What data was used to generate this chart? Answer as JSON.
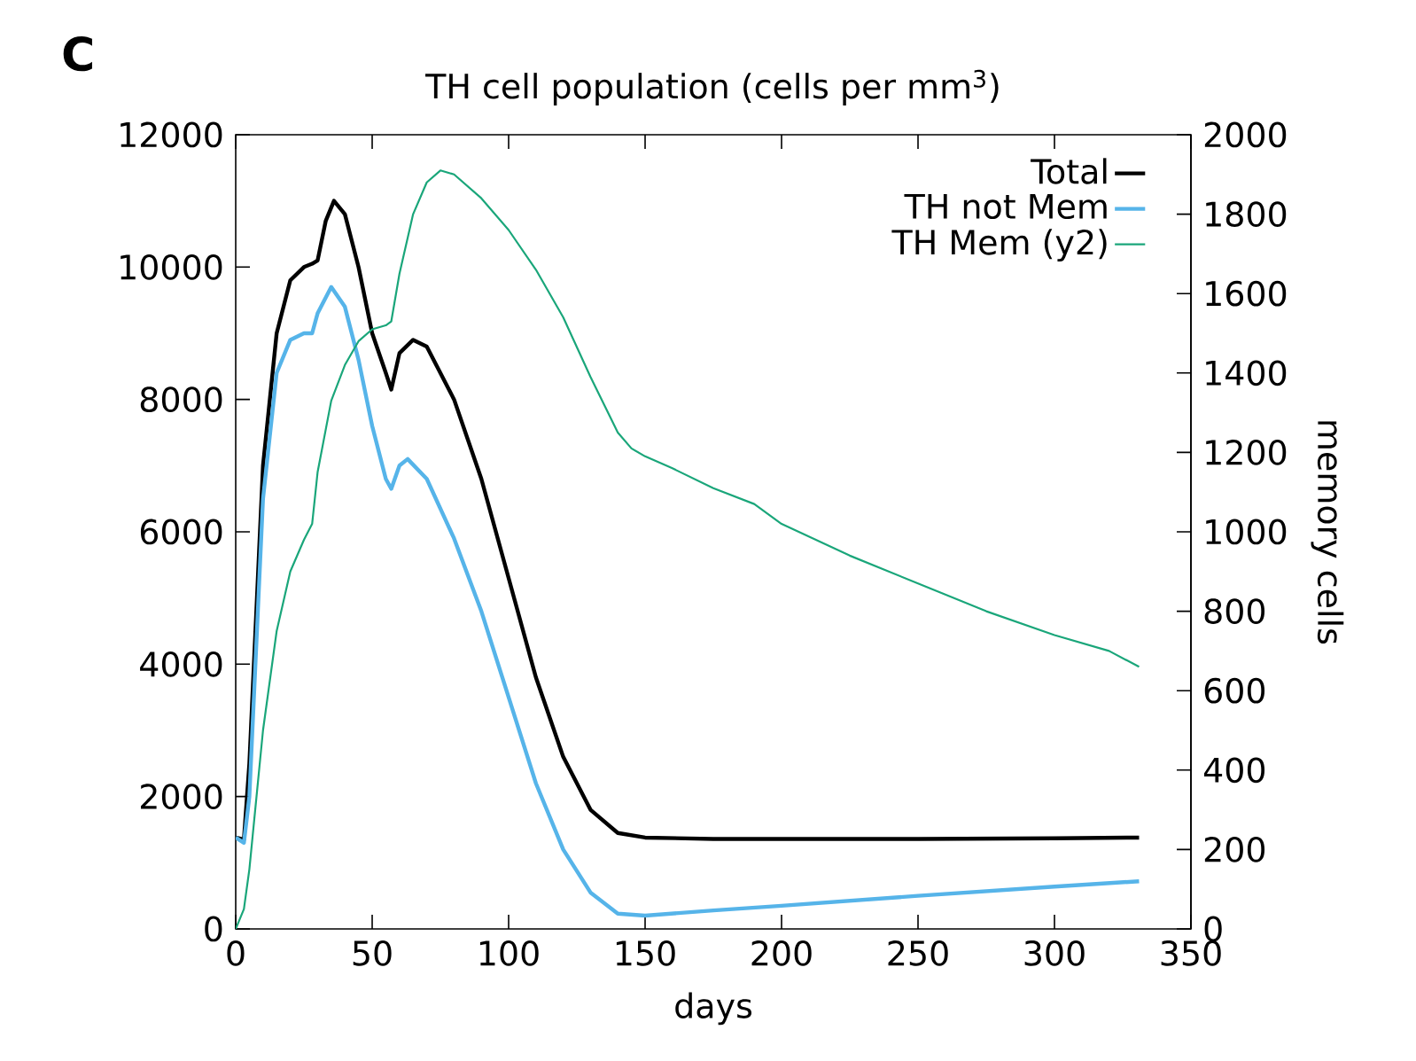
{
  "chart_data": {
    "type": "line",
    "title": "TH cell population (cells per mm$^{3}$)",
    "xlabel": "days",
    "y2label": "memory cells",
    "annotations": [
      "C"
    ],
    "xlim": [
      0,
      350
    ],
    "xticks": [
      0,
      50,
      100,
      150,
      200,
      250,
      300,
      350
    ],
    "ylim": [
      0,
      12000
    ],
    "yticks": [
      0,
      2000,
      4000,
      6000,
      8000,
      10000,
      12000
    ],
    "y2lim": [
      0,
      2000
    ],
    "y2ticks": [
      0,
      200,
      400,
      600,
      800,
      1000,
      1200,
      1400,
      1600,
      1800,
      2000
    ],
    "grid": false,
    "legend": "top right",
    "line_style": "solid",
    "marker": "none",
    "series": [
      {
        "name": "Total",
        "color": "#000000",
        "x": [
          0,
          3,
          5,
          10,
          15,
          20,
          25,
          28,
          30,
          33,
          36,
          40,
          45,
          50,
          55,
          57,
          60,
          65,
          70,
          80,
          90,
          100,
          110,
          120,
          130,
          140,
          150,
          175,
          200,
          250,
          300,
          331
        ],
        "values": [
          1380,
          1350,
          2500,
          7000,
          9000,
          9800,
          10000,
          10050,
          10100,
          10700,
          11000,
          10800,
          10000,
          9000,
          8400,
          8150,
          8700,
          8900,
          8800,
          8000,
          6800,
          5300,
          3800,
          2600,
          1800,
          1450,
          1380,
          1360,
          1360,
          1360,
          1370,
          1380
        ]
      },
      {
        "name": "TH not Mem",
        "color": "#56b4e9",
        "x": [
          0,
          3,
          5,
          10,
          15,
          20,
          25,
          28,
          30,
          35,
          40,
          45,
          50,
          55,
          57,
          60,
          63,
          70,
          80,
          90,
          100,
          110,
          120,
          130,
          140,
          150,
          175,
          200,
          250,
          300,
          331
        ],
        "values": [
          1380,
          1300,
          2000,
          6500,
          8400,
          8900,
          9000,
          9000,
          9300,
          9700,
          9400,
          8600,
          7600,
          6800,
          6650,
          7000,
          7100,
          6800,
          5900,
          4800,
          3500,
          2200,
          1200,
          550,
          230,
          200,
          280,
          350,
          500,
          640,
          720
        ]
      },
      {
        "name": "TH Mem (y2)",
        "color": "#1aa67a",
        "axis": "y2",
        "x": [
          0,
          3,
          5,
          10,
          15,
          20,
          25,
          28,
          30,
          35,
          40,
          45,
          50,
          55,
          57,
          60,
          65,
          70,
          75,
          80,
          90,
          100,
          110,
          120,
          130,
          140,
          145,
          150,
          160,
          175,
          190,
          200,
          225,
          250,
          275,
          300,
          320,
          331
        ],
        "values": [
          0,
          50,
          150,
          500,
          750,
          900,
          980,
          1020,
          1150,
          1330,
          1420,
          1480,
          1510,
          1520,
          1530,
          1650,
          1800,
          1880,
          1910,
          1900,
          1840,
          1760,
          1660,
          1540,
          1390,
          1250,
          1210,
          1190,
          1160,
          1110,
          1070,
          1020,
          940,
          870,
          800,
          740,
          700,
          660
        ]
      }
    ]
  }
}
